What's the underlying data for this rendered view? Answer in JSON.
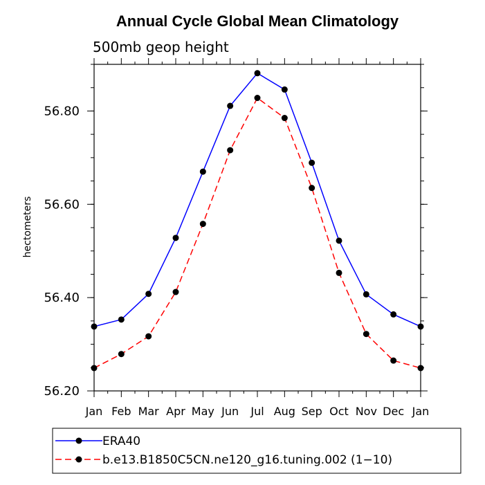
{
  "chart_data": {
    "type": "line",
    "title": "Annual Cycle Global Mean Climatology",
    "subtitle": "500mb geop height",
    "ylabel": "hectometers",
    "xlabel": "",
    "categories": [
      "Jan",
      "Feb",
      "Mar",
      "Apr",
      "May",
      "Jun",
      "Jul",
      "Aug",
      "Sep",
      "Oct",
      "Nov",
      "Dec",
      "Jan"
    ],
    "ylim": [
      56.2,
      56.9
    ],
    "yticks": [
      "56.20",
      "56.40",
      "56.60",
      "56.80"
    ],
    "ytick_values": [
      56.2,
      56.4,
      56.6,
      56.8
    ],
    "grid": false,
    "legend_position": "bottom",
    "series": [
      {
        "name": "ERA40",
        "color": "#0000ff",
        "dash": "solid",
        "values": [
          56.338,
          56.353,
          56.408,
          56.528,
          56.67,
          56.811,
          56.881,
          56.846,
          56.689,
          56.522,
          56.407,
          56.364,
          56.338
        ]
      },
      {
        "name": "b.e13.B1850C5CN.ne120_g16.tuning.002 (1−10)",
        "color": "#ff0000",
        "dash": "dashed",
        "values": [
          56.249,
          56.279,
          56.317,
          56.412,
          56.558,
          56.716,
          56.828,
          56.785,
          56.635,
          56.453,
          56.322,
          56.265,
          56.249
        ]
      }
    ]
  }
}
